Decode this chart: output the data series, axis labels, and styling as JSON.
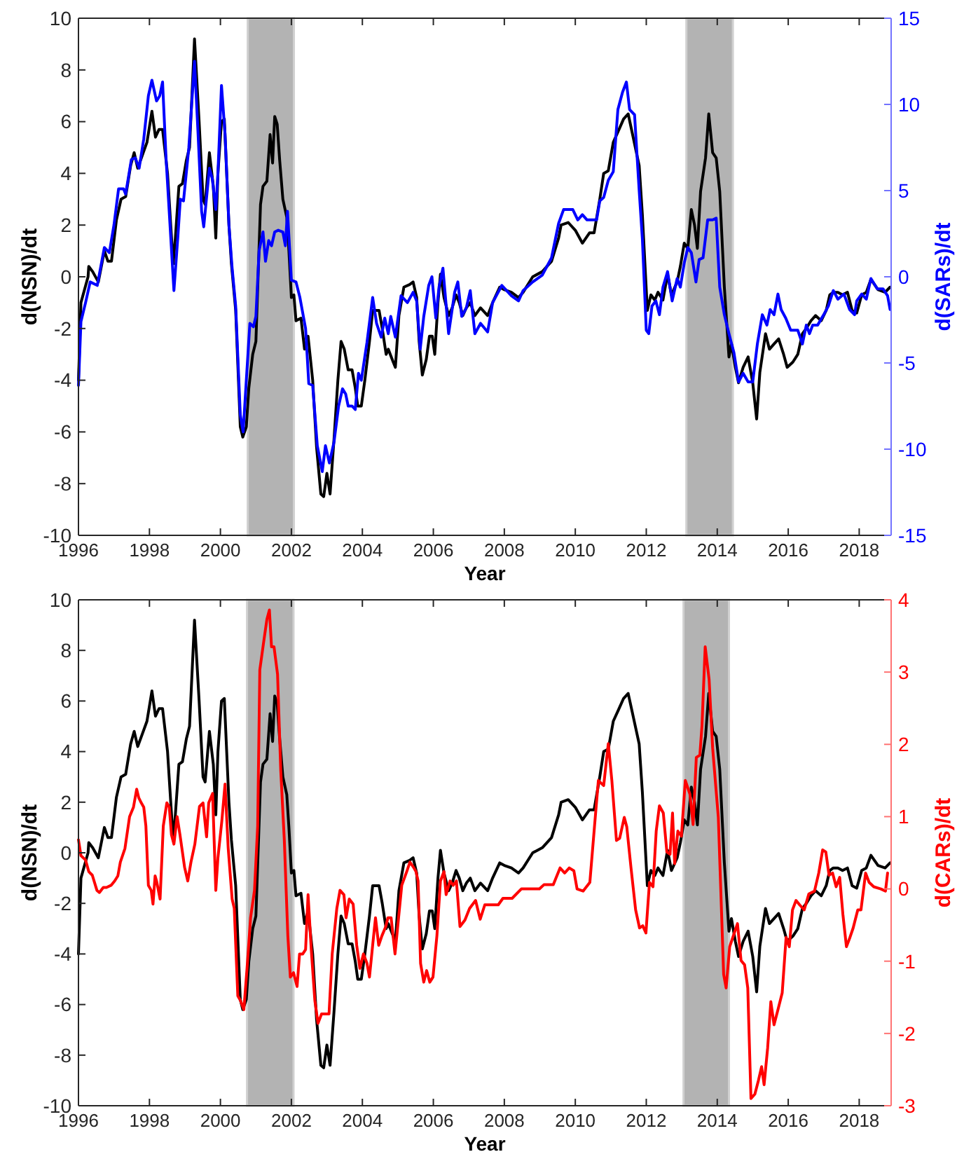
{
  "chart_data": [
    {
      "type": "line",
      "xlabel": "Year",
      "ylabel": "d(NSN)/dt",
      "y2label": "d(SARs)/dt",
      "xlim": [
        1996,
        2018.9
      ],
      "xticks": [
        1996,
        1998,
        2000,
        2002,
        2004,
        2006,
        2008,
        2010,
        2012,
        2014,
        2016,
        2018
      ],
      "ylim": [
        -10,
        10
      ],
      "yticks": [
        -10,
        -8,
        -6,
        -4,
        -2,
        0,
        2,
        4,
        6,
        8,
        10
      ],
      "y2lim": [
        -15,
        15
      ],
      "y2ticks": [
        -15,
        -10,
        -5,
        0,
        5,
        10,
        15
      ],
      "bands": [
        {
          "axis": "x",
          "from": 2000.77,
          "to": 2002.07,
          "color": "#b3b3b3"
        },
        {
          "axis": "x",
          "from": 2013.13,
          "to": 2014.44,
          "color": "#b3b3b3"
        }
      ],
      "series": [
        {
          "color": "#000000",
          "x": [
            1996.0,
            1996.07,
            1996.27,
            1996.29,
            1996.4,
            1996.56,
            1996.73,
            1996.83,
            1996.93,
            1997.07,
            1997.2,
            1997.33,
            1997.47,
            1997.57,
            1997.67,
            1997.8,
            1997.93,
            1998.07,
            1998.17,
            1998.27,
            1998.37,
            1998.51,
            1998.6,
            1998.67,
            1998.73,
            1998.83,
            1998.93,
            1999.04,
            1999.13,
            1999.27,
            1999.4,
            1999.51,
            1999.57,
            1999.69,
            1999.8,
            1999.87,
            1999.93,
            2000.03,
            2000.11,
            2000.24,
            2000.31,
            2000.43,
            2000.56,
            2000.63,
            2000.73,
            2000.8,
            2000.91,
            2001.0,
            2001.13,
            2001.2,
            2001.31,
            2001.4,
            2001.47,
            2001.53,
            2001.6,
            2001.67,
            2001.76,
            2001.87,
            2001.93,
            2002.0,
            2002.07,
            2002.13,
            2002.27,
            2002.37,
            2002.47,
            2002.6,
            2002.71,
            2002.83,
            2002.91,
            2003.0,
            2003.09,
            2003.2,
            2003.31,
            2003.4,
            2003.49,
            2003.6,
            2003.71,
            2003.8,
            2003.87,
            2003.97,
            2004.07,
            2004.2,
            2004.29,
            2004.47,
            2004.56,
            2004.67,
            2004.73,
            2004.87,
            2004.93,
            2005.03,
            2005.17,
            2005.33,
            2005.43,
            2005.53,
            2005.6,
            2005.69,
            2005.8,
            2005.89,
            2005.97,
            2006.04,
            2006.13,
            2006.2,
            2006.3,
            2006.43,
            2006.53,
            2006.64,
            2006.73,
            2006.83,
            2006.93,
            2007.04,
            2007.17,
            2007.33,
            2007.53,
            2007.67,
            2007.87,
            2008.0,
            2008.2,
            2008.4,
            2008.53,
            2008.8,
            2009.07,
            2009.33,
            2009.53,
            2009.6,
            2009.8,
            2010.0,
            2010.2,
            2010.4,
            2010.53,
            2010.69,
            2010.8,
            2010.93,
            2011.07,
            2011.2,
            2011.36,
            2011.49,
            2011.63,
            2011.8,
            2011.89,
            2012.03,
            2012.13,
            2012.24,
            2012.33,
            2012.47,
            2012.6,
            2012.71,
            2012.87,
            2012.96,
            2013.07,
            2013.17,
            2013.27,
            2013.36,
            2013.44,
            2013.53,
            2013.67,
            2013.76,
            2013.87,
            2013.97,
            2014.07,
            2014.2,
            2014.33,
            2014.4,
            2014.51,
            2014.6,
            2014.73,
            2014.87,
            2015.0,
            2015.11,
            2015.2,
            2015.36,
            2015.47,
            2015.6,
            2015.73,
            2015.87,
            2015.97,
            2016.13,
            2016.27,
            2016.4,
            2016.51,
            2016.64,
            2016.77,
            2016.93,
            2017.07,
            2017.17,
            2017.27,
            2017.4,
            2017.53,
            2017.67,
            2017.8,
            2017.93,
            2018.07,
            2018.2,
            2018.33,
            2018.53,
            2018.73,
            2018.87
          ],
          "values": [
            -4,
            -1,
            0,
            0.4,
            0.2,
            -0.2,
            1.0,
            0.6,
            0.6,
            2.2,
            3.0,
            3.1,
            4.3,
            4.8,
            4.2,
            4.7,
            5.2,
            6.4,
            5.4,
            5.7,
            5.7,
            4.0,
            2.0,
            0.5,
            1.5,
            3.5,
            3.6,
            4.5,
            5.0,
            9.2,
            6.0,
            3.0,
            2.8,
            4.8,
            3.5,
            1.5,
            4.0,
            6.0,
            6.1,
            2.0,
            0.5,
            -1.3,
            -5.8,
            -6.2,
            -5.8,
            -4.3,
            -3.0,
            -2.5,
            2.8,
            3.5,
            3.7,
            5.5,
            4.4,
            6.2,
            5.9,
            4.5,
            3.0,
            2.3,
            1.0,
            -0.8,
            -0.7,
            -1.7,
            -1.6,
            -2.8,
            -2.3,
            -4.0,
            -6.6,
            -8.4,
            -8.5,
            -7.6,
            -8.4,
            -6.3,
            -4.0,
            -2.5,
            -2.8,
            -3.6,
            -3.6,
            -4.3,
            -5.0,
            -5.0,
            -4.0,
            -2.5,
            -1.3,
            -1.3,
            -2.0,
            -3.0,
            -2.8,
            -3.3,
            -3.5,
            -1.5,
            -0.4,
            -0.3,
            -0.2,
            -0.8,
            -2.5,
            -3.8,
            -3.2,
            -2.3,
            -2.3,
            -3.0,
            -1.0,
            0.1,
            -0.8,
            -1.5,
            -1.2,
            -0.7,
            -1.0,
            -1.5,
            -1.2,
            -1.0,
            -1.5,
            -1.2,
            -1.5,
            -1.0,
            -0.4,
            -0.5,
            -0.6,
            -0.8,
            -0.6,
            0.0,
            0.2,
            0.6,
            1.5,
            2.0,
            2.1,
            1.8,
            1.3,
            1.7,
            1.7,
            3.0,
            4.0,
            4.1,
            5.2,
            5.6,
            6.1,
            6.3,
            5.4,
            4.3,
            2.4,
            -1.3,
            -0.7,
            -0.9,
            -0.6,
            -0.9,
            0.1,
            -0.7,
            -0.2,
            0.4,
            1.3,
            1.1,
            2.6,
            2.0,
            1.1,
            3.3,
            4.6,
            6.3,
            4.8,
            4.6,
            3.3,
            -0.4,
            -3.1,
            -2.6,
            -3.5,
            -4.1,
            -3.5,
            -3.1,
            -4.1,
            -5.5,
            -3.7,
            -2.2,
            -2.8,
            -2.6,
            -2.4,
            -3.0,
            -3.5,
            -3.3,
            -3.0,
            -2.2,
            -2.0,
            -1.7,
            -1.5,
            -1.7,
            -1.3,
            -0.7,
            -0.6,
            -0.6,
            -0.7,
            -0.6,
            -1.3,
            -1.4,
            -0.7,
            -0.6,
            -0.1,
            -0.5,
            -0.6,
            -0.4
          ]
        },
        {
          "color": "#0000ff",
          "axis": "y2",
          "x": [
            1996.0,
            1996.07,
            1996.2,
            1996.33,
            1996.53,
            1996.73,
            1996.87,
            1997.0,
            1997.13,
            1997.27,
            1997.33,
            1997.49,
            1997.6,
            1997.71,
            1997.84,
            1997.97,
            1998.07,
            1998.2,
            1998.29,
            1998.37,
            1998.47,
            1998.6,
            1998.69,
            1998.8,
            1998.87,
            1998.96,
            1999.11,
            1999.27,
            1999.37,
            1999.47,
            1999.53,
            1999.69,
            1999.77,
            1999.87,
            1999.93,
            2000.03,
            2000.13,
            2000.24,
            2000.33,
            2000.43,
            2000.56,
            2000.64,
            2000.73,
            2000.83,
            2000.93,
            2001.0,
            2001.09,
            2001.2,
            2001.27,
            2001.36,
            2001.44,
            2001.53,
            2001.63,
            2001.76,
            2001.83,
            2001.89,
            2002.0,
            2002.13,
            2002.24,
            2002.4,
            2002.49,
            2002.6,
            2002.73,
            2002.87,
            2002.96,
            2003.07,
            2003.2,
            2003.33,
            2003.44,
            2003.53,
            2003.6,
            2003.71,
            2003.8,
            2003.89,
            2003.97,
            2004.13,
            2004.29,
            2004.4,
            2004.53,
            2004.63,
            2004.73,
            2004.8,
            2004.93,
            2005.09,
            2005.27,
            2005.43,
            2005.53,
            2005.63,
            2005.73,
            2005.87,
            2005.96,
            2006.07,
            2006.16,
            2006.27,
            2006.43,
            2006.6,
            2006.69,
            2006.8,
            2006.93,
            2007.04,
            2007.17,
            2007.33,
            2007.53,
            2007.67,
            2007.93,
            2008.2,
            2008.4,
            2008.53,
            2008.8,
            2009.07,
            2009.33,
            2009.53,
            2009.67,
            2009.8,
            2009.93,
            2010.07,
            2010.2,
            2010.33,
            2010.47,
            2010.6,
            2010.69,
            2010.8,
            2010.93,
            2011.07,
            2011.2,
            2011.33,
            2011.44,
            2011.53,
            2011.67,
            2011.8,
            2011.89,
            2012.0,
            2012.07,
            2012.16,
            2012.27,
            2012.37,
            2012.47,
            2012.6,
            2012.73,
            2012.87,
            2012.96,
            2013.07,
            2013.17,
            2013.27,
            2013.4,
            2013.49,
            2013.6,
            2013.73,
            2013.87,
            2013.97,
            2014.07,
            2014.2,
            2014.33,
            2014.47,
            2014.6,
            2014.73,
            2014.87,
            2015.0,
            2015.13,
            2015.27,
            2015.4,
            2015.49,
            2015.6,
            2015.71,
            2015.8,
            2015.93,
            2016.07,
            2016.27,
            2016.4,
            2016.51,
            2016.6,
            2016.69,
            2016.83,
            2017.0,
            2017.13,
            2017.27,
            2017.4,
            2017.57,
            2017.73,
            2017.87,
            2017.93,
            2018.07,
            2018.2,
            2018.33,
            2018.51,
            2018.67,
            2018.8,
            2018.87
          ],
          "values": [
            -6.3,
            -2.6,
            -1.5,
            -0.3,
            -0.5,
            1.7,
            1.4,
            3.0,
            5.1,
            5.1,
            4.8,
            6.8,
            6.9,
            6.3,
            8.0,
            10.5,
            11.4,
            10.2,
            10.5,
            11.3,
            6.8,
            2.3,
            -0.8,
            2.3,
            4.5,
            4.4,
            7.5,
            12.5,
            8.3,
            3.8,
            2.9,
            6.3,
            5.7,
            3.9,
            6.0,
            11.1,
            8.3,
            3.0,
            0.5,
            -1.7,
            -8.0,
            -9.0,
            -6.0,
            -2.7,
            -2.9,
            -2.3,
            1.5,
            2.6,
            0.9,
            2.1,
            1.8,
            2.6,
            2.7,
            2.6,
            1.8,
            3.8,
            -0.2,
            -0.3,
            -1.2,
            -3.0,
            -6.2,
            -6.3,
            -9.8,
            -11.3,
            -9.8,
            -10.8,
            -9.6,
            -7.5,
            -6.5,
            -6.8,
            -7.5,
            -7.5,
            -7.7,
            -5.6,
            -6.0,
            -3.8,
            -1.2,
            -2.7,
            -3.5,
            -2.4,
            -3.3,
            -2.3,
            -3.5,
            -1.1,
            -1.5,
            -0.9,
            -1.4,
            -4.2,
            -2.3,
            -0.5,
            0.0,
            -2.4,
            -0.6,
            0.5,
            -3.3,
            -0.9,
            -0.3,
            -2.3,
            -1.8,
            -0.8,
            -3.3,
            -2.7,
            -3.2,
            -1.5,
            -0.5,
            -1.1,
            -1.4,
            -0.8,
            -0.3,
            0.1,
            1.1,
            3.1,
            3.9,
            3.9,
            3.9,
            3.3,
            3.6,
            3.3,
            3.3,
            3.3,
            4.4,
            4.6,
            5.6,
            6.1,
            9.7,
            10.7,
            11.3,
            9.7,
            9.4,
            5.0,
            2.2,
            -3.1,
            -3.3,
            -1.7,
            -1.4,
            -2.2,
            -0.6,
            0.3,
            -1.4,
            -0.1,
            -0.6,
            0.8,
            1.7,
            1.4,
            -0.3,
            1.0,
            1.1,
            3.3,
            3.3,
            3.4,
            -0.6,
            -2.2,
            -3.3,
            -4.4,
            -6.1,
            -5.6,
            -6.1,
            -6.1,
            -3.9,
            -2.2,
            -2.8,
            -1.9,
            -2.2,
            -1.0,
            -1.9,
            -2.4,
            -3.1,
            -3.1,
            -3.9,
            -2.8,
            -3.3,
            -2.8,
            -2.8,
            -2.2,
            -1.7,
            -0.8,
            -1.3,
            -1.0,
            -1.9,
            -2.2,
            -1.4,
            -1.0,
            -1.3,
            -0.1,
            -0.7,
            -0.7,
            -1.1,
            -1.9
          ]
        }
      ]
    },
    {
      "type": "line",
      "xlabel": "Year",
      "ylabel": "d(NSN)/dt",
      "y2label": "d(CARs)/dt",
      "xlim": [
        1996,
        2018.9
      ],
      "xticks": [
        1996,
        1998,
        2000,
        2002,
        2004,
        2006,
        2008,
        2010,
        2012,
        2014,
        2016,
        2018
      ],
      "ylim": [
        -10,
        10
      ],
      "yticks": [
        -10,
        -8,
        -6,
        -4,
        -2,
        0,
        2,
        4,
        6,
        8,
        10
      ],
      "y2lim": [
        -3,
        4
      ],
      "y2ticks": [
        -3,
        -2,
        -1,
        0,
        1,
        2,
        3,
        4
      ],
      "bands": [
        {
          "axis": "x",
          "from": 2000.75,
          "to": 2002.06,
          "color": "#b3b3b3"
        },
        {
          "axis": "x",
          "from": 2013.05,
          "to": 2014.33,
          "color": "#b3b3b3"
        }
      ],
      "series": [
        {
          "color": "#000000",
          "x": [
            1996.0,
            1996.07,
            1996.27,
            1996.29,
            1996.4,
            1996.56,
            1996.73,
            1996.83,
            1996.93,
            1997.07,
            1997.2,
            1997.33,
            1997.47,
            1997.57,
            1997.67,
            1997.8,
            1997.93,
            1998.07,
            1998.17,
            1998.27,
            1998.37,
            1998.51,
            1998.6,
            1998.67,
            1998.73,
            1998.83,
            1998.93,
            1999.04,
            1999.13,
            1999.27,
            1999.4,
            1999.51,
            1999.57,
            1999.69,
            1999.8,
            1999.87,
            1999.93,
            2000.03,
            2000.11,
            2000.24,
            2000.31,
            2000.43,
            2000.56,
            2000.63,
            2000.73,
            2000.8,
            2000.91,
            2001.0,
            2001.13,
            2001.2,
            2001.31,
            2001.4,
            2001.47,
            2001.53,
            2001.6,
            2001.67,
            2001.76,
            2001.87,
            2001.93,
            2002.0,
            2002.07,
            2002.13,
            2002.27,
            2002.37,
            2002.47,
            2002.6,
            2002.71,
            2002.83,
            2002.91,
            2003.0,
            2003.09,
            2003.2,
            2003.31,
            2003.4,
            2003.49,
            2003.6,
            2003.71,
            2003.8,
            2003.87,
            2003.97,
            2004.07,
            2004.2,
            2004.29,
            2004.47,
            2004.56,
            2004.67,
            2004.73,
            2004.87,
            2004.93,
            2005.03,
            2005.17,
            2005.33,
            2005.43,
            2005.53,
            2005.6,
            2005.69,
            2005.8,
            2005.89,
            2005.97,
            2006.04,
            2006.13,
            2006.2,
            2006.3,
            2006.43,
            2006.53,
            2006.64,
            2006.73,
            2006.83,
            2006.93,
            2007.04,
            2007.17,
            2007.33,
            2007.53,
            2007.67,
            2007.87,
            2008.0,
            2008.2,
            2008.4,
            2008.53,
            2008.8,
            2009.07,
            2009.33,
            2009.53,
            2009.6,
            2009.8,
            2010.0,
            2010.2,
            2010.4,
            2010.53,
            2010.69,
            2010.8,
            2010.93,
            2011.07,
            2011.2,
            2011.36,
            2011.49,
            2011.63,
            2011.8,
            2011.89,
            2012.03,
            2012.13,
            2012.24,
            2012.33,
            2012.47,
            2012.6,
            2012.71,
            2012.87,
            2012.96,
            2013.07,
            2013.17,
            2013.27,
            2013.36,
            2013.44,
            2013.53,
            2013.67,
            2013.76,
            2013.87,
            2013.97,
            2014.07,
            2014.2,
            2014.33,
            2014.4,
            2014.51,
            2014.6,
            2014.73,
            2014.87,
            2015.0,
            2015.11,
            2015.2,
            2015.36,
            2015.47,
            2015.6,
            2015.73,
            2015.87,
            2015.97,
            2016.13,
            2016.27,
            2016.4,
            2016.51,
            2016.64,
            2016.77,
            2016.93,
            2017.07,
            2017.17,
            2017.27,
            2017.4,
            2017.53,
            2017.67,
            2017.8,
            2017.93,
            2018.07,
            2018.2,
            2018.33,
            2018.53,
            2018.73,
            2018.87
          ],
          "values": [
            -4,
            -1,
            0,
            0.4,
            0.2,
            -0.2,
            1.0,
            0.6,
            0.6,
            2.2,
            3.0,
            3.1,
            4.3,
            4.8,
            4.2,
            4.7,
            5.2,
            6.4,
            5.4,
            5.7,
            5.7,
            4.0,
            2.0,
            0.5,
            1.5,
            3.5,
            3.6,
            4.5,
            5.0,
            9.2,
            6.0,
            3.0,
            2.8,
            4.8,
            3.5,
            1.5,
            4.0,
            6.0,
            6.1,
            2.0,
            0.5,
            -1.3,
            -5.8,
            -6.2,
            -5.8,
            -4.3,
            -3.0,
            -2.5,
            2.8,
            3.5,
            3.7,
            5.5,
            4.4,
            6.2,
            5.9,
            4.5,
            3.0,
            2.3,
            1.0,
            -0.8,
            -0.7,
            -1.7,
            -1.6,
            -2.8,
            -2.3,
            -4.0,
            -6.6,
            -8.4,
            -8.5,
            -7.6,
            -8.4,
            -6.3,
            -4.0,
            -2.5,
            -2.8,
            -3.6,
            -3.6,
            -4.3,
            -5.0,
            -5.0,
            -4.0,
            -2.5,
            -1.3,
            -1.3,
            -2.0,
            -3.0,
            -2.8,
            -3.3,
            -3.5,
            -1.5,
            -0.4,
            -0.3,
            -0.2,
            -0.8,
            -2.5,
            -3.8,
            -3.2,
            -2.3,
            -2.3,
            -3.0,
            -1.0,
            0.1,
            -0.8,
            -1.5,
            -1.2,
            -0.7,
            -1.0,
            -1.5,
            -1.2,
            -1.0,
            -1.5,
            -1.2,
            -1.5,
            -1.0,
            -0.4,
            -0.5,
            -0.6,
            -0.8,
            -0.6,
            0.0,
            0.2,
            0.6,
            1.5,
            2.0,
            2.1,
            1.8,
            1.3,
            1.7,
            1.7,
            3.0,
            4.0,
            4.1,
            5.2,
            5.6,
            6.1,
            6.3,
            5.4,
            4.3,
            2.4,
            -1.3,
            -0.7,
            -0.9,
            -0.6,
            -0.9,
            0.1,
            -0.7,
            -0.2,
            0.4,
            1.3,
            1.1,
            2.6,
            2.0,
            1.1,
            3.3,
            4.6,
            6.3,
            4.8,
            4.6,
            3.3,
            -0.4,
            -3.1,
            -2.6,
            -3.5,
            -4.1,
            -3.5,
            -3.1,
            -4.1,
            -5.5,
            -3.7,
            -2.2,
            -2.8,
            -2.6,
            -2.4,
            -3.0,
            -3.5,
            -3.3,
            -3.0,
            -2.2,
            -2.0,
            -1.7,
            -1.5,
            -1.7,
            -1.3,
            -0.7,
            -0.6,
            -0.6,
            -0.7,
            -0.6,
            -1.3,
            -1.4,
            -0.7,
            -0.6,
            -0.1,
            -0.5,
            -0.6,
            -0.4
          ]
        },
        {
          "color": "#ff0000",
          "axis": "y2",
          "x": [
            1996.0,
            1996.07,
            1996.2,
            1996.29,
            1996.39,
            1996.52,
            1996.59,
            1996.7,
            1996.79,
            1996.92,
            1997.02,
            1997.11,
            1997.18,
            1997.31,
            1997.44,
            1997.55,
            1997.64,
            1997.7,
            1997.77,
            1997.84,
            1997.9,
            1997.97,
            1998.05,
            1998.1,
            1998.16,
            1998.2,
            1998.3,
            1998.39,
            1998.49,
            1998.56,
            1998.62,
            1998.69,
            1998.78,
            1998.86,
            1998.99,
            1999.08,
            1999.17,
            1999.28,
            1999.41,
            1999.51,
            1999.61,
            1999.67,
            1999.78,
            1999.87,
            1999.93,
            2000.04,
            2000.13,
            2000.22,
            2000.33,
            2000.39,
            2000.49,
            2000.56,
            2000.66,
            2000.75,
            2000.85,
            2000.96,
            2001.05,
            2001.11,
            2001.22,
            2001.31,
            2001.38,
            2001.44,
            2001.51,
            2001.61,
            2001.7,
            2001.8,
            2001.9,
            2001.97,
            2002.06,
            2002.16,
            2002.23,
            2002.32,
            2002.4,
            2002.47,
            2002.56,
            2002.66,
            2002.75,
            2002.85,
            2002.95,
            2003.06,
            2003.15,
            2003.28,
            2003.37,
            2003.48,
            2003.54,
            2003.63,
            2003.74,
            2003.84,
            2003.93,
            2004.03,
            2004.13,
            2004.2,
            2004.29,
            2004.37,
            2004.46,
            2004.55,
            2004.66,
            2004.72,
            2004.81,
            2004.92,
            2005.02,
            2005.11,
            2005.25,
            2005.34,
            2005.44,
            2005.51,
            2005.57,
            2005.64,
            2005.73,
            2005.81,
            2005.9,
            2005.99,
            2006.1,
            2006.2,
            2006.3,
            2006.36,
            2006.47,
            2006.56,
            2006.65,
            2006.75,
            2006.89,
            2007.02,
            2007.19,
            2007.32,
            2007.45,
            2007.57,
            2007.83,
            2007.96,
            2008.22,
            2008.48,
            2008.74,
            2008.99,
            2009.12,
            2009.38,
            2009.57,
            2009.7,
            2009.83,
            2009.96,
            2010.05,
            2010.22,
            2010.41,
            2010.54,
            2010.65,
            2010.8,
            2010.93,
            2011.03,
            2011.16,
            2011.25,
            2011.38,
            2011.45,
            2011.57,
            2011.7,
            2011.81,
            2011.9,
            2011.99,
            2012.09,
            2012.19,
            2012.28,
            2012.37,
            2012.48,
            2012.58,
            2012.67,
            2012.74,
            2012.8,
            2012.89,
            2012.99,
            2013.1,
            2013.23,
            2013.32,
            2013.41,
            2013.51,
            2013.57,
            2013.66,
            2013.77,
            2013.87,
            2014.03,
            2014.18,
            2014.25,
            2014.35,
            2014.48,
            2014.57,
            2014.67,
            2014.77,
            2014.86,
            2014.95,
            2015.06,
            2015.16,
            2015.25,
            2015.32,
            2015.42,
            2015.51,
            2015.6,
            2015.7,
            2015.83,
            2015.94,
            2016.03,
            2016.12,
            2016.22,
            2016.32,
            2016.45,
            2016.58,
            2016.74,
            2016.86,
            2016.97,
            2017.06,
            2017.15,
            2017.25,
            2017.35,
            2017.45,
            2017.54,
            2017.64,
            2017.74,
            2017.83,
            2017.96,
            2018.05,
            2018.18,
            2018.28,
            2018.41,
            2018.61,
            2018.74,
            2018.8
          ],
          "values": [
            0.68,
            0.46,
            0.4,
            0.24,
            0.19,
            -0.02,
            -0.05,
            0.02,
            0.02,
            0.05,
            0.11,
            0.18,
            0.37,
            0.56,
            1.0,
            1.13,
            1.38,
            1.26,
            1.19,
            1.13,
            0.87,
            0.05,
            -0.02,
            -0.21,
            0.18,
            0.11,
            -0.14,
            0.87,
            1.19,
            1.13,
            0.75,
            0.62,
            1.0,
            0.75,
            0.3,
            0.11,
            0.37,
            0.62,
            1.14,
            1.19,
            0.72,
            1.19,
            1.32,
            -0.02,
            0.43,
            0.94,
            1.45,
            0.56,
            -0.14,
            -0.27,
            -1.48,
            -1.54,
            -1.67,
            -1.1,
            -0.4,
            -0.02,
            0.87,
            3.03,
            3.42,
            3.73,
            3.86,
            3.35,
            3.35,
            2.97,
            1.64,
            0.68,
            -0.65,
            -1.22,
            -1.16,
            -1.35,
            -0.9,
            -0.9,
            -0.84,
            -0.08,
            -0.84,
            -1.54,
            -1.86,
            -1.73,
            -1.73,
            -1.73,
            -0.9,
            -0.27,
            -0.02,
            -0.08,
            -0.4,
            -0.14,
            -0.21,
            -0.78,
            -1.1,
            -0.9,
            -1.03,
            -1.22,
            -0.78,
            -0.4,
            -0.78,
            -0.65,
            -0.52,
            -0.4,
            -0.4,
            -0.9,
            -0.4,
            0.05,
            0.24,
            0.37,
            0.3,
            0.24,
            0.11,
            -1.03,
            -1.29,
            -1.13,
            -1.29,
            -1.22,
            -0.65,
            0.11,
            0.24,
            -0.08,
            0.11,
            0.05,
            0.11,
            -0.52,
            -0.43,
            -0.27,
            -0.16,
            -0.42,
            -0.22,
            -0.22,
            -0.22,
            -0.13,
            -0.13,
            0.0,
            0.0,
            0.0,
            0.06,
            0.06,
            0.29,
            0.22,
            0.29,
            0.25,
            0.0,
            -0.03,
            0.09,
            0.86,
            1.5,
            1.43,
            2.01,
            1.5,
            0.67,
            0.7,
            0.99,
            0.86,
            0.29,
            -0.29,
            -0.54,
            -0.51,
            -0.61,
            0.09,
            0.03,
            0.8,
            1.15,
            1.05,
            0.51,
            0.48,
            1.05,
            0.35,
            0.8,
            0.73,
            1.5,
            1.31,
            0.89,
            1.82,
            1.85,
            2.26,
            3.35,
            2.9,
            1.95,
            0.99,
            -1.18,
            -1.37,
            -0.8,
            -0.61,
            -0.48,
            -0.99,
            -1.05,
            -1.37,
            -2.9,
            -2.84,
            -2.65,
            -2.46,
            -2.71,
            -2.2,
            -1.56,
            -1.88,
            -1.69,
            -1.44,
            -0.67,
            -0.8,
            -0.29,
            -0.16,
            -0.22,
            -0.29,
            -0.07,
            -0.03,
            0.22,
            0.54,
            0.51,
            0.19,
            0.22,
            0.03,
            0.16,
            -0.35,
            -0.8,
            -0.67,
            -0.54,
            -0.29,
            -0.29,
            0.22,
            0.09,
            0.03,
            0.0,
            -0.03,
            0.22
          ]
        }
      ]
    }
  ]
}
